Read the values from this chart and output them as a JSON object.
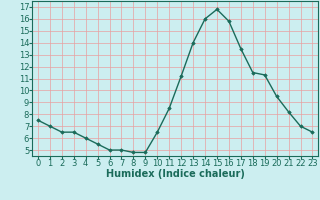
{
  "x": [
    0,
    1,
    2,
    3,
    4,
    5,
    6,
    7,
    8,
    9,
    10,
    11,
    12,
    13,
    14,
    15,
    16,
    17,
    18,
    19,
    20,
    21,
    22,
    23
  ],
  "y": [
    7.5,
    7.0,
    6.5,
    6.5,
    6.0,
    5.5,
    5.0,
    5.0,
    4.8,
    4.8,
    6.5,
    8.5,
    11.2,
    14.0,
    16.0,
    16.8,
    15.8,
    13.5,
    11.5,
    11.3,
    9.5,
    8.2,
    7.0,
    6.5
  ],
  "xlabel": "Humidex (Indice chaleur)",
  "xlim": [
    -0.5,
    23.5
  ],
  "ylim": [
    4.5,
    17.5
  ],
  "yticks": [
    5,
    6,
    7,
    8,
    9,
    10,
    11,
    12,
    13,
    14,
    15,
    16,
    17
  ],
  "xticks": [
    0,
    1,
    2,
    3,
    4,
    5,
    6,
    7,
    8,
    9,
    10,
    11,
    12,
    13,
    14,
    15,
    16,
    17,
    18,
    19,
    20,
    21,
    22,
    23
  ],
  "line_color": "#1a6b5a",
  "marker": "D",
  "marker_size": 1.8,
  "bg_color": "#cceef0",
  "grid_color": "#e8a0a0",
  "xlabel_fontsize": 7,
  "tick_fontsize": 6,
  "line_width": 1.0,
  "spine_color": "#1a6b5a"
}
